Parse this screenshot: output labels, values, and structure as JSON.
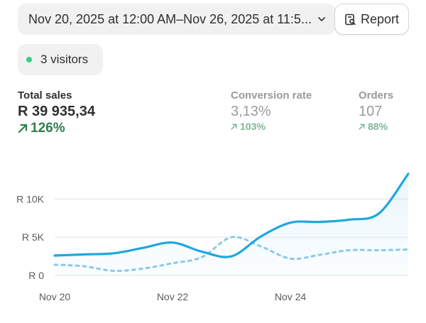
{
  "header": {
    "date_range": "Nov 20, 2025 at 12:00 AM–Nov 26, 2025 at 11:5...",
    "report_label": "Report"
  },
  "live": {
    "visitors_label": "3 visitors"
  },
  "metrics": [
    {
      "label": "Total sales",
      "value": "R 39 935,34",
      "change": "126%"
    },
    {
      "label": "Conversion rate",
      "value": "3,13%",
      "change": "103%"
    },
    {
      "label": "Orders",
      "value": "107",
      "change": "88%"
    }
  ],
  "colors": {
    "current_line": "#1ea7df",
    "comparison_line": "#8cc9e8",
    "positive": "#2e7d4f",
    "live_dot": "#36d07c"
  },
  "chart_data": {
    "type": "line",
    "y_ticks": [
      {
        "value": 10000,
        "label": "R 10K"
      },
      {
        "value": 5000,
        "label": "R 5K"
      },
      {
        "value": 0,
        "label": "R 0"
      }
    ],
    "x_ticks": [
      {
        "x": 0,
        "label": "Nov 20"
      },
      {
        "x": 2,
        "label": "Nov 22"
      },
      {
        "x": 4,
        "label": "Nov 24"
      }
    ],
    "ylim": [
      0,
      13000
    ],
    "xlim": [
      0,
      6
    ],
    "grid": true,
    "series": [
      {
        "style": "solid",
        "x": [
          0,
          0.5,
          1,
          1.5,
          2,
          2.5,
          3,
          3.5,
          4,
          4.5,
          5,
          5.5,
          6
        ],
        "values": [
          2600,
          2750,
          2900,
          3600,
          4300,
          3100,
          2500,
          5100,
          6900,
          7000,
          7300,
          8100,
          13300
        ]
      },
      {
        "style": "dashed",
        "x": [
          0,
          0.5,
          1,
          1.5,
          2,
          2.5,
          3,
          3.5,
          4,
          4.5,
          5,
          5.5,
          6
        ],
        "values": [
          1400,
          1200,
          600,
          900,
          1600,
          2400,
          5000,
          3800,
          2200,
          2700,
          3300,
          3300,
          3400
        ]
      }
    ]
  }
}
